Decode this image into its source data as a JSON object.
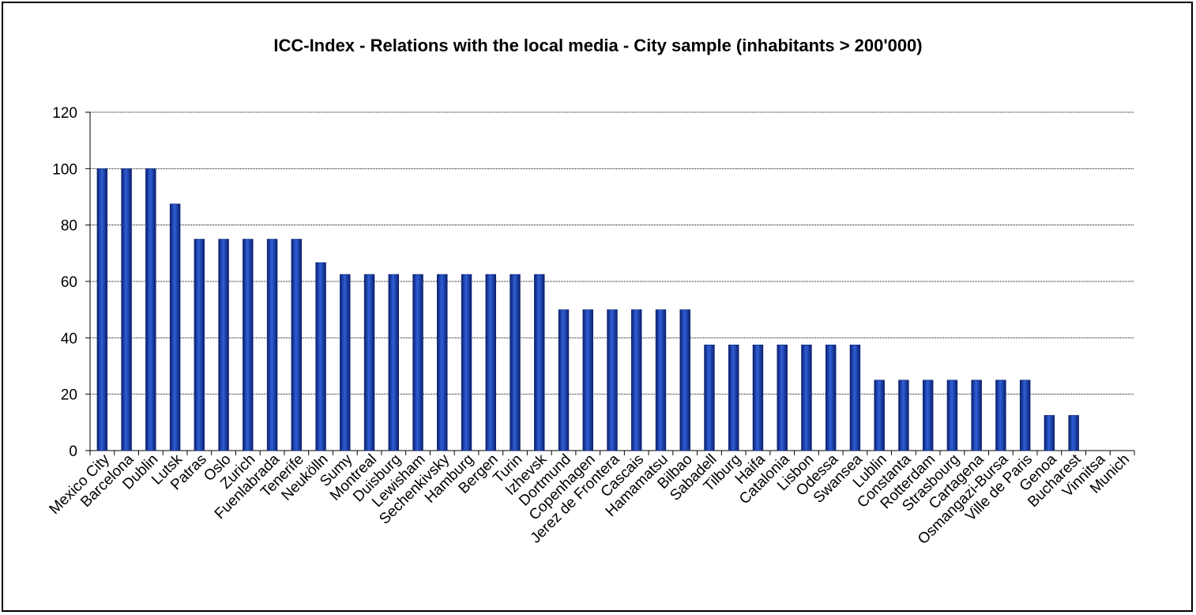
{
  "chart_data": {
    "type": "bar",
    "title": "ICC-Index - Relations with the  local media - City sample (inhabitants > 200'000)",
    "xlabel": "",
    "ylabel": "",
    "ylim": [
      0,
      120
    ],
    "yticks": [
      0,
      20,
      40,
      60,
      80,
      100,
      120
    ],
    "grid": true,
    "legend": "none",
    "bar_color": "#1a3fa8",
    "categories": [
      "Mexico City",
      "Barcelona",
      "Dublin",
      "Lutsk",
      "Patras",
      "Oslo",
      "Zurich",
      "Fuenlabrada",
      "Tenerife",
      "Neukölln",
      "Sumy",
      "Montreal",
      "Duisburg",
      "Lewisham",
      "Sechenkivsky",
      "Hamburg",
      "Bergen",
      "Turin",
      "Izhevsk",
      "Dortmund",
      "Copenhagen",
      "Jerez de Frontera",
      "Cascais",
      "Hamamatsu",
      "Bilbao",
      "Sabadell",
      "Tilburg",
      "Haifa",
      "Catalonia",
      "Lisbon",
      "Odessa",
      "Swansea",
      "Lublin",
      "Constanta",
      "Rotterdam",
      "Strasbourg",
      "Cartagena",
      "Osmangazi-Bursa",
      "Ville de Paris",
      "Genoa",
      "Bucharest",
      "Vinnitsa",
      "Munich"
    ],
    "values": [
      100,
      100,
      100,
      87.5,
      75,
      75,
      75,
      75,
      75,
      66.7,
      62.5,
      62.5,
      62.5,
      62.5,
      62.5,
      62.5,
      62.5,
      62.5,
      62.5,
      50,
      50,
      50,
      50,
      50,
      50,
      37.5,
      37.5,
      37.5,
      37.5,
      37.5,
      37.5,
      37.5,
      25,
      25,
      25,
      25,
      25,
      25,
      25,
      12.5,
      12.5,
      0,
      0
    ]
  }
}
